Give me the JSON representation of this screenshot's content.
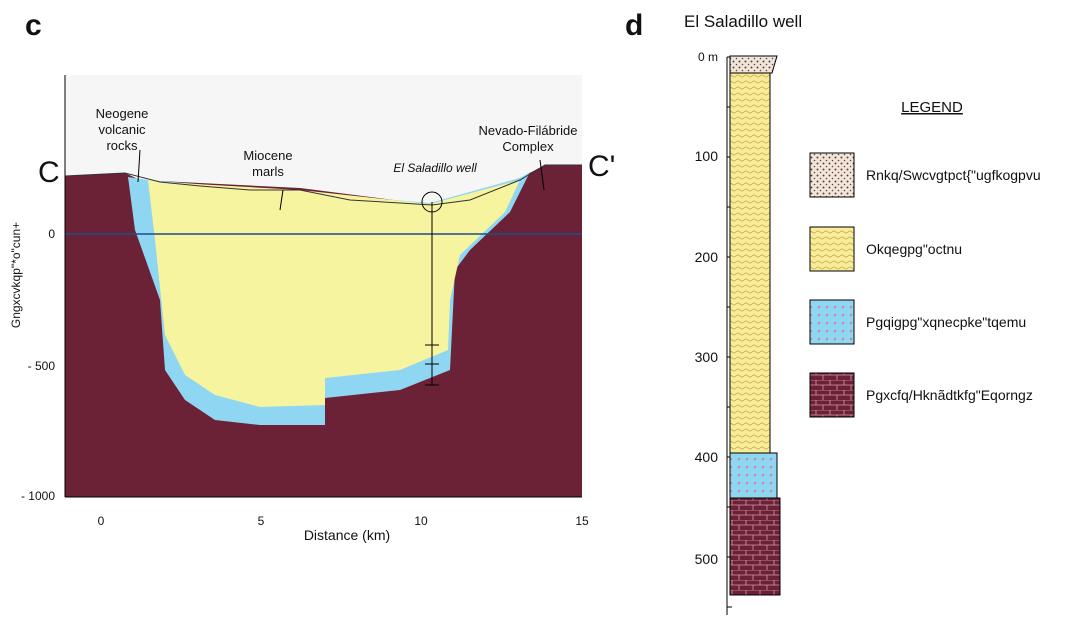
{
  "panel_c": {
    "letter": "c",
    "labels": {
      "neogene": [
        "Neogene",
        "volcanic",
        "rocks"
      ],
      "miocene": [
        "Miocene",
        "marls"
      ],
      "well": "El Saladillo well",
      "nevado": [
        "Nevado-Filábride",
        "Complex"
      ],
      "c_left": "C",
      "c_right": "C'"
    },
    "y_axis_label": "Gngxcvkqp\"*o\"cun+",
    "y_tick_labels": [
      "0",
      "- 500",
      "- 1000"
    ],
    "x_tick_labels": [
      "0",
      "5",
      "10",
      "15"
    ],
    "x_axis_label": "Distance (km)"
  },
  "panel_d": {
    "letter": "d",
    "title": "El Saladillo well",
    "depth_labels": [
      "0 m",
      "100",
      "200",
      "300",
      "400",
      "500"
    ],
    "legend": {
      "title": "LEGEND",
      "items": [
        "Rnkq/Swcvgtpct{\"ugfkogpvu",
        "Okqegpg\"octnu",
        "Pgqigpg\"xqnecpke\"tqemu",
        "Pgxcfq/Hknãdtkfg\"Eqorngz"
      ]
    }
  }
}
